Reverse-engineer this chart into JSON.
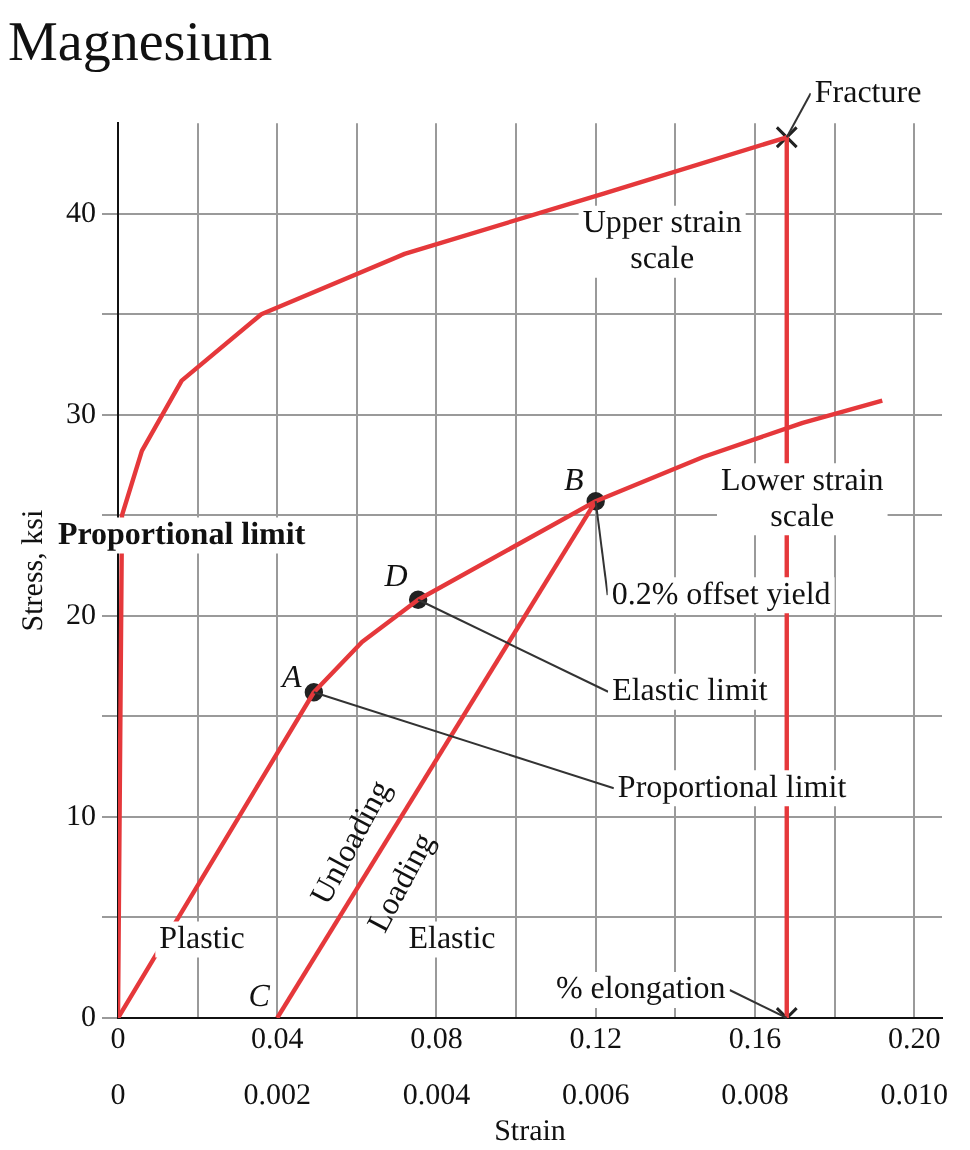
{
  "chart_data": {
    "type": "line",
    "title": "Magnesium",
    "xlabel": "Strain",
    "ylabel": "Stress, ksi",
    "xlim": [
      0,
      0.207
    ],
    "xticks": [
      0,
      {
        "value": 0.02,
        "label": null
      },
      0.04,
      {
        "value": 0.06,
        "label": null
      },
      0.08,
      {
        "value": 0.1,
        "label": null
      },
      0.12,
      {
        "value": 0.14,
        "label": null
      },
      0.16,
      {
        "value": 0.18,
        "label": null
      },
      {
        "value": 0.2,
        "label": "0.20"
      }
    ],
    "x2lim": [
      0,
      0.01035
    ],
    "x2ticks": [
      0,
      0.002,
      0.004,
      0.006,
      0.008,
      {
        "value": 0.01,
        "label": "0.010"
      }
    ],
    "ylim": [
      0,
      44.5
    ],
    "yticks": [
      0,
      {
        "value": 5,
        "label": null
      },
      10,
      {
        "value": 15,
        "label": null
      },
      20,
      {
        "value": 25,
        "label": null
      },
      30,
      {
        "value": 35,
        "label": null
      },
      40
    ],
    "grid": true,
    "series": [
      {
        "type": "line",
        "axis": "x2",
        "color": "#e5383b",
        "marker": "none",
        "x": [
          0,
          5e-05,
          0.0003,
          0.0008,
          0.0018,
          0.0036,
          0.0061,
          0.0084
        ],
        "values": [
          0,
          25,
          28.2,
          31.7,
          35,
          38,
          41,
          43.8
        ]
      },
      {
        "type": "line",
        "color": "#e5383b",
        "marker": "none",
        "x": [
          0,
          0.0492,
          0.0613,
          0.0754,
          0.12,
          0.147,
          0.172,
          0.192
        ],
        "values": [
          0,
          16.2,
          18.7,
          20.8,
          25.7,
          27.9,
          29.6,
          30.7
        ]
      },
      {
        "type": "line",
        "color": "#e5383b",
        "marker": "none",
        "x": [
          0.12,
          0.04
        ],
        "values": [
          25.7,
          0
        ]
      },
      {
        "type": "line",
        "color": "#e5383b",
        "marker": "none",
        "x": [
          0.168,
          0.168
        ],
        "values": [
          43.8,
          0
        ]
      },
      {
        "type": "scatter",
        "color": "#222222",
        "marker": "circle",
        "x": [
          0.0492,
          0.0754,
          0.12
        ],
        "values": [
          16.2,
          20.8,
          25.7
        ]
      },
      {
        "type": "scatter",
        "color": "#222222",
        "marker": "cross",
        "x": [
          0.168,
          0.168
        ],
        "values": [
          43.8,
          0
        ]
      }
    ],
    "annotations": [
      {
        "text": "Fracture",
        "x": 0.168,
        "y": 43.8
      },
      "Upper strain scale",
      "Lower strain scale",
      {
        "text": "0.2% offset yield",
        "x": 0.12,
        "y": 25.7
      },
      {
        "text": "Elastic limit",
        "x": 0.0754,
        "y": 20.8
      },
      {
        "text": "Proportional limit",
        "x": 0.0492,
        "y": 16.2
      },
      "Proportional limit",
      {
        "text": "A",
        "x": 0.0492,
        "y": 16.2
      },
      {
        "text": "B",
        "x": 0.12,
        "y": 25.7
      },
      {
        "text": "C",
        "x": 0.04,
        "y": 0
      },
      {
        "text": "D",
        "x": 0.0754,
        "y": 20.8
      },
      "Unloading",
      "Loading",
      "Plastic",
      "Elastic",
      {
        "text": "% elongation",
        "x": 0.168,
        "y": 0
      }
    ]
  }
}
